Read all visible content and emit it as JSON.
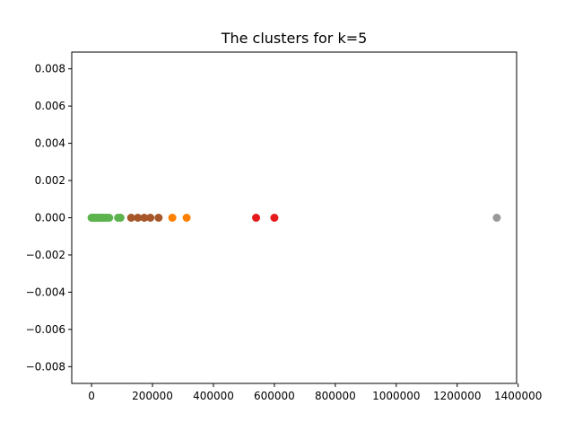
{
  "chart_data": {
    "type": "scatter",
    "title": "The clusters for k=5",
    "xlabel": "",
    "ylabel": "",
    "xlim": [
      -65000,
      1395000
    ],
    "ylim": [
      -0.0089,
      0.0089
    ],
    "grid": false,
    "legend": "none",
    "x_ticks": [
      {
        "value": 0,
        "label": "0"
      },
      {
        "value": 200000,
        "label": "200000"
      },
      {
        "value": 400000,
        "label": "400000"
      },
      {
        "value": 600000,
        "label": "600000"
      },
      {
        "value": 800000,
        "label": "800000"
      },
      {
        "value": 1000000,
        "label": "1000000"
      },
      {
        "value": 1200000,
        "label": "1200000"
      },
      {
        "value": 1400000,
        "label": "1400000"
      }
    ],
    "y_ticks": [
      {
        "value": 0.008,
        "label": "0.008"
      },
      {
        "value": 0.006,
        "label": "0.006"
      },
      {
        "value": 0.004,
        "label": "0.004"
      },
      {
        "value": 0.002,
        "label": "0.002"
      },
      {
        "value": 0.0,
        "label": "0.000"
      },
      {
        "value": -0.002,
        "label": "−0.002"
      },
      {
        "value": -0.004,
        "label": "−0.004"
      },
      {
        "value": -0.006,
        "label": "−0.006"
      },
      {
        "value": -0.008,
        "label": "−0.008"
      }
    ],
    "series": [
      {
        "color": "#5db34e",
        "points": [
          {
            "x": 0,
            "y": 0
          },
          {
            "x": 3000,
            "y": 0
          },
          {
            "x": 6000,
            "y": 0
          },
          {
            "x": 9000,
            "y": 0
          },
          {
            "x": 12000,
            "y": 0
          },
          {
            "x": 15000,
            "y": 0
          },
          {
            "x": 18000,
            "y": 0
          },
          {
            "x": 22000,
            "y": 0
          },
          {
            "x": 26000,
            "y": 0
          },
          {
            "x": 30000,
            "y": 0
          },
          {
            "x": 35000,
            "y": 0
          },
          {
            "x": 40000,
            "y": 0
          },
          {
            "x": 46000,
            "y": 0
          },
          {
            "x": 52000,
            "y": 0
          },
          {
            "x": 58000,
            "y": 0
          },
          {
            "x": 87000,
            "y": 0
          },
          {
            "x": 95000,
            "y": 0
          }
        ]
      },
      {
        "color": "#a65628",
        "points": [
          {
            "x": 130000,
            "y": 0
          },
          {
            "x": 152000,
            "y": 0
          },
          {
            "x": 173000,
            "y": 0
          },
          {
            "x": 193000,
            "y": 0
          },
          {
            "x": 220000,
            "y": 0
          }
        ]
      },
      {
        "color": "#ff7f00",
        "points": [
          {
            "x": 265000,
            "y": 0
          },
          {
            "x": 312000,
            "y": 0
          }
        ]
      },
      {
        "color": "#e41a1c",
        "points": [
          {
            "x": 540000,
            "y": 0
          },
          {
            "x": 600000,
            "y": 0
          }
        ]
      },
      {
        "color": "#999999",
        "points": [
          {
            "x": 1330000,
            "y": 0
          }
        ]
      }
    ]
  }
}
